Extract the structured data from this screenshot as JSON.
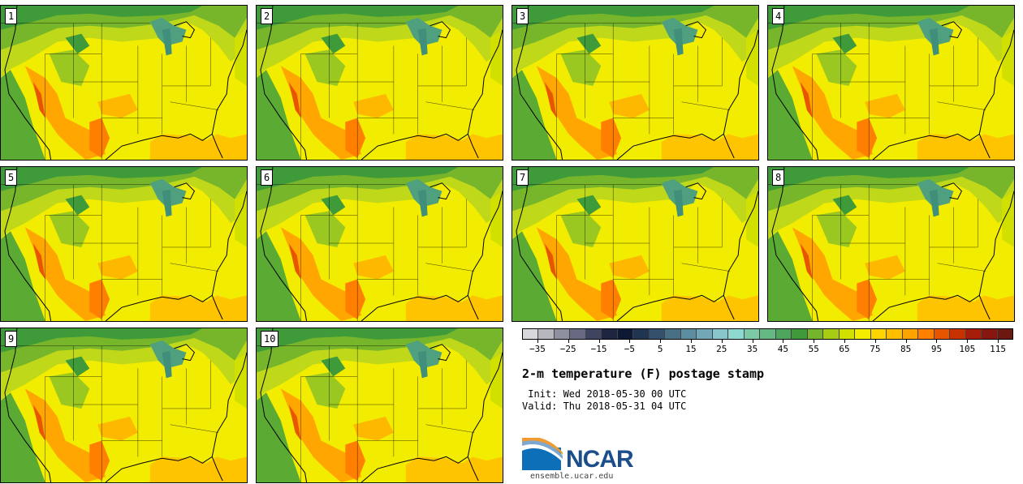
{
  "stamps": [
    {
      "number": "1"
    },
    {
      "number": "2"
    },
    {
      "number": "3"
    },
    {
      "number": "4"
    },
    {
      "number": "5"
    },
    {
      "number": "6"
    },
    {
      "number": "7"
    },
    {
      "number": "8"
    },
    {
      "number": "9"
    },
    {
      "number": "10"
    }
  ],
  "colorbar": {
    "colors": [
      "#d8d8dc",
      "#b5b6be",
      "#8e90a0",
      "#676a80",
      "#3f4460",
      "#1d2540",
      "#0e1a34",
      "#1f3550",
      "#35506a",
      "#4a6f85",
      "#5d8da0",
      "#72a8b5",
      "#88c6cc",
      "#8fd8d0",
      "#7cc9a6",
      "#65b883",
      "#4fa55d",
      "#3f9a3a",
      "#74b52c",
      "#a8cc14",
      "#d2e000",
      "#f3ee00",
      "#ffd400",
      "#ffbe00",
      "#ffa300",
      "#ff7f00",
      "#e85500",
      "#c83200",
      "#a81c0c",
      "#881610",
      "#6c1810"
    ],
    "tick_labels": [
      "−35",
      "−25",
      "−15",
      "−5",
      "5",
      "15",
      "25",
      "35",
      "45",
      "55",
      "65",
      "75",
      "85",
      "95",
      "105",
      "115"
    ],
    "min": -40,
    "max": 120
  },
  "title": "2-m temperature (F) postage stamp",
  "init_text": " Init: Wed 2018-05-30 00 UTC",
  "valid_text": "Valid: Thu 2018-05-31 04 UTC",
  "logo": {
    "text": "NCAR",
    "site": "ensemble.ucar.edu"
  }
}
